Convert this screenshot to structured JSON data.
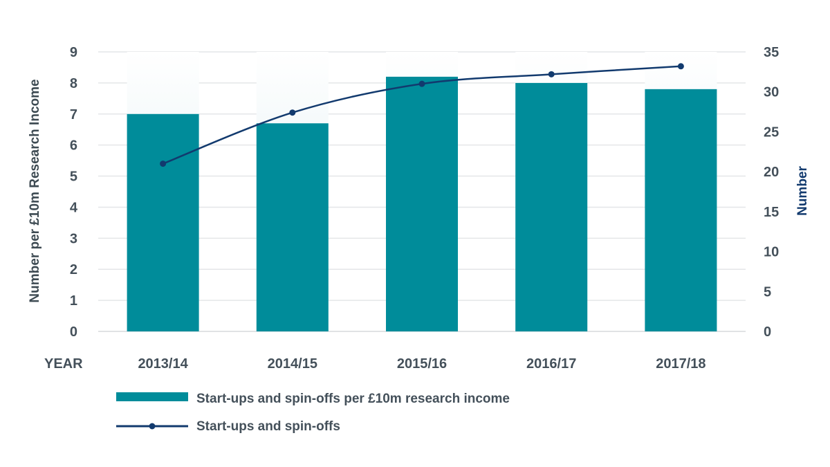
{
  "chart_data": {
    "type": "bar",
    "categories": [
      "2013/14",
      "2014/15",
      "2015/16",
      "2016/17",
      "2017/18"
    ],
    "category_axis_label": "YEAR",
    "series": [
      {
        "name": "Start-ups and spin-offs per £10m research income",
        "type": "bar",
        "axis": "left",
        "values": [
          7.0,
          6.7,
          8.2,
          8.0,
          7.8
        ]
      },
      {
        "name": "Start-ups and spin-offs",
        "type": "line",
        "axis": "right",
        "values": [
          21,
          27.4,
          31,
          32.2,
          33.2
        ]
      }
    ],
    "y_left": {
      "label": "Number per £10m Research Income",
      "range": [
        0,
        9
      ],
      "ticks": [
        "0",
        "1",
        "2",
        "3",
        "4",
        "5",
        "6",
        "7",
        "8",
        "9"
      ]
    },
    "y_right": {
      "label": "Number",
      "range": [
        0,
        35
      ],
      "ticks": [
        "0",
        "5",
        "10",
        "15",
        "20",
        "25",
        "30",
        "35"
      ]
    },
    "grid": true,
    "legend_position": "bottom-left",
    "colors": {
      "bar": "#008c9a",
      "bar_shade": "#d9ebef",
      "line": "#123a6e",
      "grid": "#e4e6e8",
      "left_title": "#3d4a52",
      "right_title": "#123a6e"
    }
  }
}
